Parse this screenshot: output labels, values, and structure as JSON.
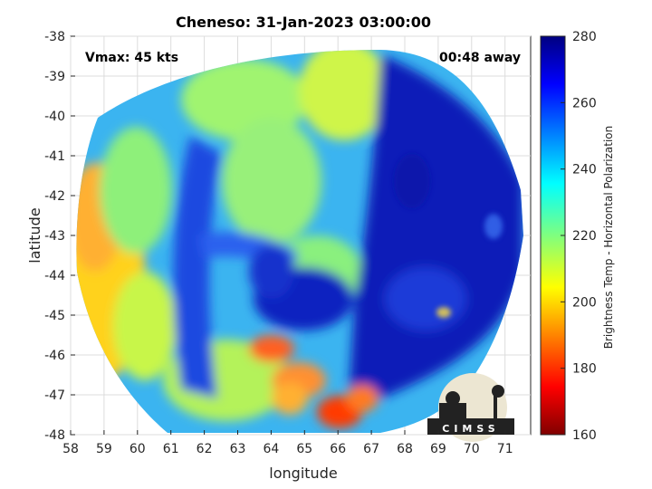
{
  "title": "Cheneso: 31-Jan-2023 03:00:00",
  "vmax_label": "Vmax: 45 kts",
  "away_label": "00:48 away",
  "x_axis": {
    "label": "longitude",
    "ticks": [
      "58",
      "59",
      "60",
      "61",
      "62",
      "63",
      "64",
      "65",
      "66",
      "67",
      "68",
      "69",
      "70",
      "71"
    ]
  },
  "y_axis": {
    "label": "latitude",
    "ticks": [
      "-38",
      "-39",
      "-40",
      "-41",
      "-42",
      "-43",
      "-44",
      "-45",
      "-46",
      "-47",
      "-48"
    ]
  },
  "colorbar": {
    "label": "Brightness Temp - Horizontal Polarization",
    "ticks": [
      "280",
      "260",
      "240",
      "220",
      "200",
      "180",
      "160"
    ],
    "range": [
      160,
      280
    ],
    "colormap": "jet"
  },
  "logo_text": "CIMSS",
  "colors": {
    "cold_core": "#0a1fb8",
    "warm_band": "#ff3a00",
    "background": "#2aa4ff"
  }
}
